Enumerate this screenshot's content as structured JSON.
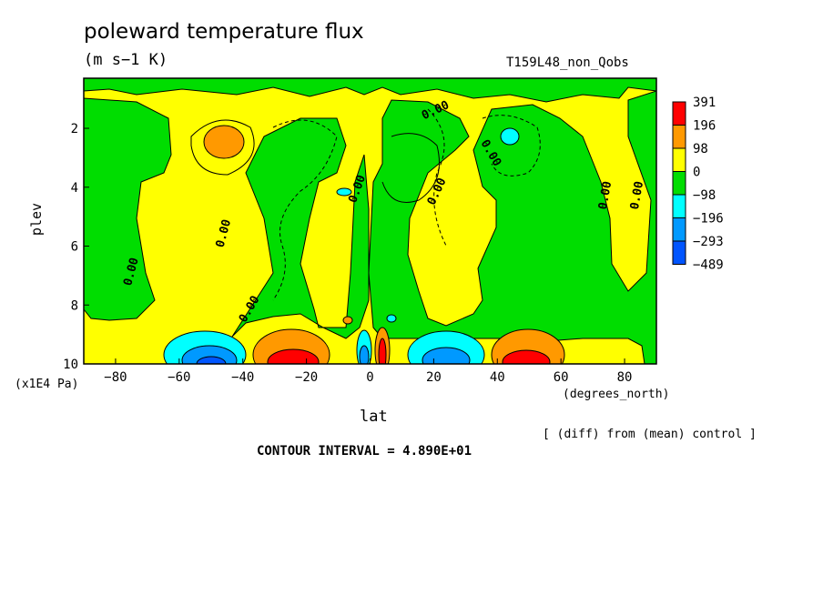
{
  "chart_data": {
    "type": "contour",
    "title": "poleward temperature flux",
    "units": "(m s−1 K)",
    "run_label": "T159L48_non_Qobs",
    "xlabel": "lat",
    "x_units": "(degrees_north)",
    "ylabel": "plev",
    "y_units": "(x1E4 Pa)",
    "xlim": [
      -90,
      90
    ],
    "ylim": [
      10,
      0.3
    ],
    "x_ticks": [
      "−80",
      "−60",
      "−40",
      "−20",
      "0",
      "20",
      "40",
      "60",
      "80"
    ],
    "y_ticks": [
      "2",
      "4",
      "6",
      "8",
      "10"
    ],
    "contour_interval_text": "CONTOUR INTERVAL = 4.890E+01",
    "note": "[ (diff) from (mean) control ]",
    "colorbar": {
      "labels": [
        "391",
        "196",
        "98",
        "0",
        "−98",
        "−196",
        "−293",
        "−489"
      ],
      "colors": [
        "#ff0000",
        "#ff9900",
        "#ffff00",
        "#00dd00",
        "#00ffff",
        "#0099ff",
        "#0055ff"
      ]
    },
    "contour_label_value": "0.00",
    "features": [
      {
        "name": "positive-max-nh",
        "lat": 45,
        "plev": 9.8,
        "level": "391"
      },
      {
        "name": "positive-max-sh",
        "lat": -25,
        "plev": 9.8,
        "level": "391"
      },
      {
        "name": "negative-min-sh",
        "lat": -48,
        "plev": 9.8,
        "level": "−293"
      },
      {
        "name": "negative-min-nh",
        "lat": 25,
        "plev": 9.7,
        "level": "−293"
      },
      {
        "name": "equatorial-dipole-pos",
        "lat": 4,
        "plev": 9.7,
        "level": "391"
      },
      {
        "name": "equatorial-dipole-neg",
        "lat": -3,
        "plev": 9.7,
        "level": "−293"
      },
      {
        "name": "upper-sh-positive-patch",
        "lat": -47,
        "plev": 2.4,
        "level": "98"
      },
      {
        "name": "upper-nh-negative-patch",
        "lat": 45,
        "plev": 2.2,
        "level": "−98"
      }
    ]
  }
}
